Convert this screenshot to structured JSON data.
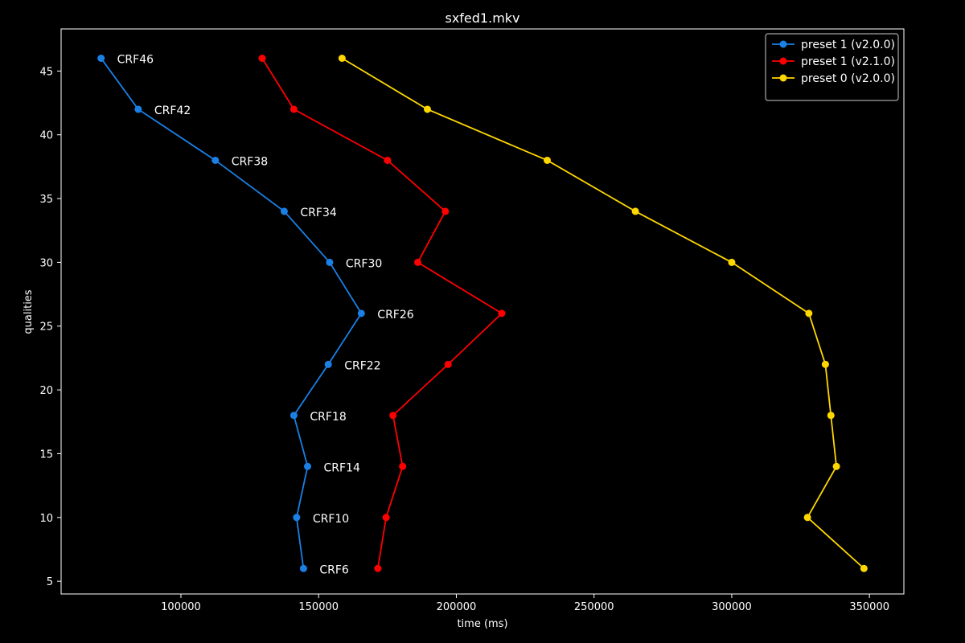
{
  "chart_data": {
    "type": "line",
    "title": "sxfed1.mkv",
    "xlabel": "time (ms)",
    "ylabel": "qualities",
    "xlim": [
      56500,
      362500
    ],
    "ylim": [
      4,
      48.3
    ],
    "xticks": [
      100000,
      150000,
      200000,
      250000,
      300000,
      350000
    ],
    "yticks": [
      5,
      10,
      15,
      20,
      25,
      30,
      35,
      40,
      45
    ],
    "grid": false,
    "legend_position": "top-right",
    "y": [
      46,
      42,
      38,
      34,
      30,
      26,
      22,
      18,
      14,
      10,
      6
    ],
    "series": [
      {
        "name": "preset 1 (v2.0.0)",
        "color": "#1a80e6",
        "x": [
          71000,
          84500,
          112500,
          137500,
          154000,
          165500,
          153500,
          141000,
          146000,
          142000,
          144500
        ]
      },
      {
        "name": "preset 1 (v2.1.0)",
        "color": "#ff0000",
        "x": [
          129500,
          141000,
          175000,
          196000,
          186000,
          216500,
          197000,
          177000,
          180500,
          174500,
          171500
        ]
      },
      {
        "name": "preset 0 (v2.0.0)",
        "color": "#ffd700",
        "x": [
          158500,
          189500,
          233000,
          265000,
          300000,
          328000,
          334000,
          336000,
          338000,
          327500,
          348000
        ]
      }
    ],
    "annotations": {
      "series_index": 0,
      "labels": [
        "CRF46",
        "CRF42",
        "CRF38",
        "CRF34",
        "CRF30",
        "CRF26",
        "CRF22",
        "CRF18",
        "CRF14",
        "CRF10",
        "CRF6"
      ]
    }
  }
}
